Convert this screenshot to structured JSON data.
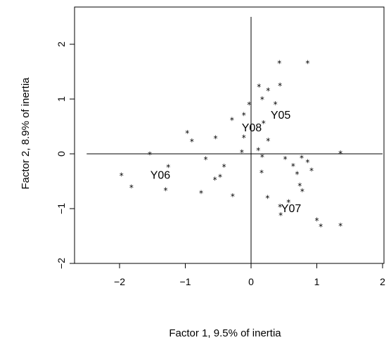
{
  "chart_data": {
    "type": "scatter",
    "xlabel": "Factor 1, 9.5% of inertia",
    "ylabel": "Factor 2, 8.9% of inertia",
    "xlim": [
      -2.6,
      2.1
    ],
    "ylim": [
      -2.0,
      2.5
    ],
    "xticks": [
      -2,
      -1,
      0,
      1,
      2
    ],
    "yticks": [
      -2,
      -1,
      0,
      1,
      2
    ],
    "xtick_labels": [
      "−2",
      "−1",
      "0",
      "1",
      "2"
    ],
    "ytick_labels": [
      "−2",
      "−1",
      "0",
      "1",
      "2"
    ],
    "reference_lines": {
      "horizontal": {
        "y": 0,
        "x_from": -2.5,
        "x_to": 2.0
      },
      "vertical": {
        "x": 0,
        "y_from": -2.0,
        "y_to": 2.5
      }
    },
    "marker": "*",
    "points": [
      {
        "x": -1.97,
        "y": -0.35
      },
      {
        "x": -1.82,
        "y": -0.57
      },
      {
        "x": -1.54,
        "y": 0.03
      },
      {
        "x": -1.26,
        "y": -0.2
      },
      {
        "x": -1.3,
        "y": -0.62
      },
      {
        "x": -0.97,
        "y": 0.42
      },
      {
        "x": -0.9,
        "y": 0.27
      },
      {
        "x": -0.76,
        "y": -0.67
      },
      {
        "x": -0.69,
        "y": -0.06
      },
      {
        "x": -0.54,
        "y": 0.33
      },
      {
        "x": -0.55,
        "y": -0.43
      },
      {
        "x": -0.47,
        "y": -0.38
      },
      {
        "x": -0.41,
        "y": -0.19
      },
      {
        "x": -0.29,
        "y": 0.66
      },
      {
        "x": -0.28,
        "y": -0.73
      },
      {
        "x": -0.14,
        "y": 0.07
      },
      {
        "x": -0.11,
        "y": 0.75
      },
      {
        "x": -0.11,
        "y": 0.34
      },
      {
        "x": -0.03,
        "y": 0.94
      },
      {
        "x": 0.11,
        "y": 0.11
      },
      {
        "x": 0.12,
        "y": 1.27
      },
      {
        "x": 0.17,
        "y": 1.04
      },
      {
        "x": 0.17,
        "y": -0.01
      },
      {
        "x": 0.16,
        "y": -0.3
      },
      {
        "x": 0.19,
        "y": 0.6
      },
      {
        "x": 0.26,
        "y": 1.2
      },
      {
        "x": 0.26,
        "y": 0.28
      },
      {
        "x": 0.25,
        "y": -0.76
      },
      {
        "x": 0.37,
        "y": 0.95
      },
      {
        "x": 0.43,
        "y": 1.7
      },
      {
        "x": 0.44,
        "y": 1.29
      },
      {
        "x": 0.44,
        "y": -0.92
      },
      {
        "x": 0.45,
        "y": -1.08
      },
      {
        "x": 0.52,
        "y": -0.05
      },
      {
        "x": 0.57,
        "y": -0.84
      },
      {
        "x": 0.64,
        "y": -0.18
      },
      {
        "x": 0.7,
        "y": -0.33
      },
      {
        "x": 0.74,
        "y": -0.54
      },
      {
        "x": 0.78,
        "y": -0.64
      },
      {
        "x": 0.77,
        "y": -0.03
      },
      {
        "x": 0.86,
        "y": 1.7
      },
      {
        "x": 0.86,
        "y": -0.11
      },
      {
        "x": 0.92,
        "y": -0.26
      },
      {
        "x": 1.0,
        "y": -1.17
      },
      {
        "x": 1.06,
        "y": -1.28
      },
      {
        "x": 1.36,
        "y": 0.05
      },
      {
        "x": 1.36,
        "y": -1.27
      }
    ],
    "labels": [
      {
        "text": "Y05",
        "x": 0.45,
        "y": 0.72
      },
      {
        "text": "Y08",
        "x": 0.01,
        "y": 0.49
      },
      {
        "text": "Y06",
        "x": -1.38,
        "y": -0.38
      },
      {
        "text": "Y07",
        "x": 0.61,
        "y": -0.99
      }
    ]
  }
}
